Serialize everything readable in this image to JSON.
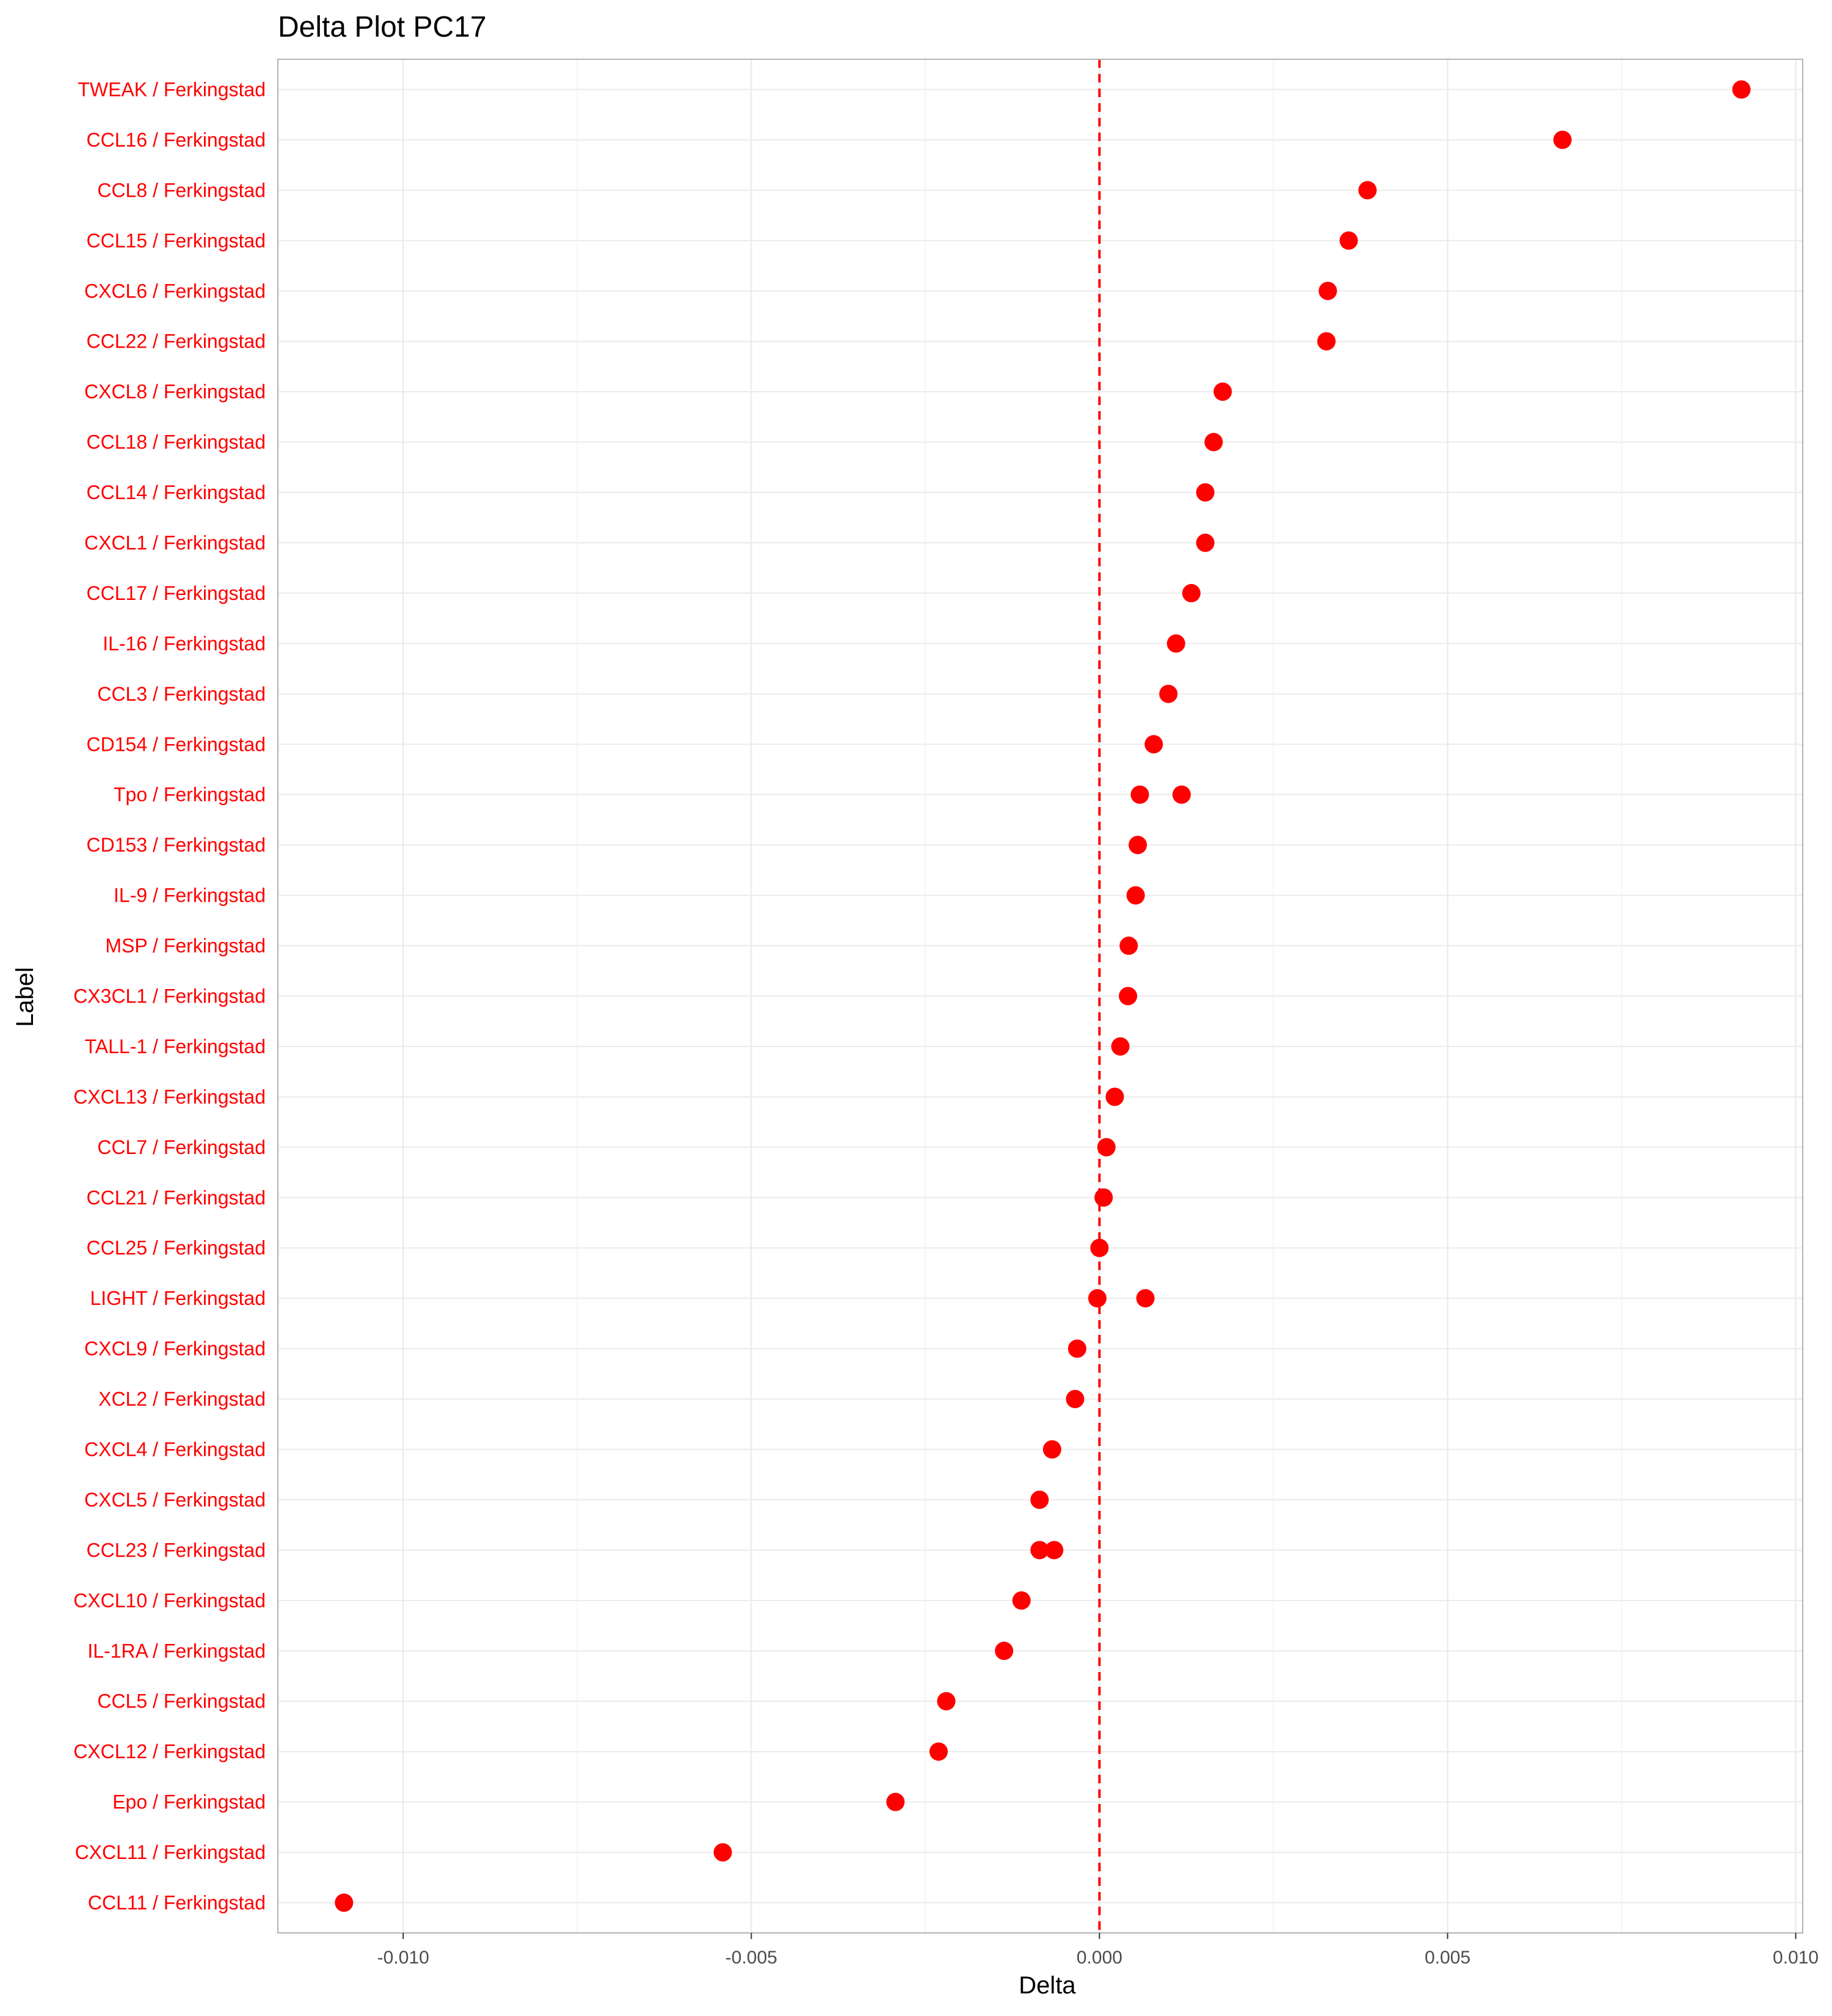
{
  "chart_data": {
    "type": "scatter",
    "title": "Delta Plot PC17",
    "xlabel": "Delta",
    "ylabel": "Label",
    "xlim": [
      -0.0118,
      0.0101
    ],
    "x_ticks": [
      -0.01,
      -0.005,
      0.0,
      0.005,
      0.01
    ],
    "x_tick_labels": [
      "-0.010",
      "-0.005",
      "0.000",
      "0.005",
      "0.010"
    ],
    "reference_line": {
      "x": 0.0,
      "style": "dashed"
    },
    "grid": true,
    "legend": "none",
    "colors": {
      "points": "#ff0000",
      "labels": "#ff0000",
      "refline": "#ff0000",
      "grid": "#ebebeb",
      "panel_border": "#b3b3b3"
    },
    "categories": [
      "TWEAK / Ferkingstad",
      "CCL16 / Ferkingstad",
      "CCL8 / Ferkingstad",
      "CCL15 / Ferkingstad",
      "CXCL6 / Ferkingstad",
      "CCL22 / Ferkingstad",
      "CXCL8 / Ferkingstad",
      "CCL18 / Ferkingstad",
      "CCL14 / Ferkingstad",
      "CXCL1 / Ferkingstad",
      "CCL17 / Ferkingstad",
      "IL-16 / Ferkingstad",
      "CCL3 / Ferkingstad",
      "CD154 / Ferkingstad",
      "Tpo / Ferkingstad",
      "CD153 / Ferkingstad",
      "IL-9 / Ferkingstad",
      "MSP / Ferkingstad",
      "CX3CL1 / Ferkingstad",
      "TALL-1 / Ferkingstad",
      "CXCL13 / Ferkingstad",
      "CCL7 / Ferkingstad",
      "CCL21 / Ferkingstad",
      "CCL25 / Ferkingstad",
      "LIGHT / Ferkingstad",
      "CXCL9 / Ferkingstad",
      "XCL2 / Ferkingstad",
      "CXCL4 / Ferkingstad",
      "CXCL5 / Ferkingstad",
      "CCL23 / Ferkingstad",
      "CXCL10 / Ferkingstad",
      "IL-1RA / Ferkingstad",
      "CCL5 / Ferkingstad",
      "CXCL12 / Ferkingstad",
      "Epo / Ferkingstad",
      "CXCL11 / Ferkingstad",
      "CCL11 / Ferkingstad"
    ],
    "points": [
      {
        "label": "TWEAK / Ferkingstad",
        "x": 0.00922
      },
      {
        "label": "CCL16 / Ferkingstad",
        "x": 0.00665
      },
      {
        "label": "CCL8 / Ferkingstad",
        "x": 0.00385
      },
      {
        "label": "CCL15 / Ferkingstad",
        "x": 0.00358
      },
      {
        "label": "CXCL6 / Ferkingstad",
        "x": 0.00328
      },
      {
        "label": "CCL22 / Ferkingstad",
        "x": 0.00326
      },
      {
        "label": "CXCL8 / Ferkingstad",
        "x": 0.00177
      },
      {
        "label": "CCL18 / Ferkingstad",
        "x": 0.00164
      },
      {
        "label": "CCL14 / Ferkingstad",
        "x": 0.00152
      },
      {
        "label": "CXCL1 / Ferkingstad",
        "x": 0.00152
      },
      {
        "label": "CCL17 / Ferkingstad",
        "x": 0.00132
      },
      {
        "label": "IL-16 / Ferkingstad",
        "x": 0.0011
      },
      {
        "label": "CCL3 / Ferkingstad",
        "x": 0.00099
      },
      {
        "label": "CD154 / Ferkingstad",
        "x": 0.00078
      },
      {
        "label": "Tpo / Ferkingstad",
        "x": 0.00058
      },
      {
        "label": "Tpo / Ferkingstad",
        "x": 0.00118
      },
      {
        "label": "CD153 / Ferkingstad",
        "x": 0.00055
      },
      {
        "label": "IL-9 / Ferkingstad",
        "x": 0.00052
      },
      {
        "label": "MSP / Ferkingstad",
        "x": 0.00042
      },
      {
        "label": "CX3CL1 / Ferkingstad",
        "x": 0.00041
      },
      {
        "label": "TALL-1 / Ferkingstad",
        "x": 0.0003
      },
      {
        "label": "CXCL13 / Ferkingstad",
        "x": 0.00022
      },
      {
        "label": "CCL7 / Ferkingstad",
        "x": 0.0001
      },
      {
        "label": "CCL21 / Ferkingstad",
        "x": 6e-05
      },
      {
        "label": "CCL25 / Ferkingstad",
        "x": 0.0
      },
      {
        "label": "LIGHT / Ferkingstad",
        "x": -3e-05
      },
      {
        "label": "LIGHT / Ferkingstad",
        "x": 0.00066
      },
      {
        "label": "CXCL9 / Ferkingstad",
        "x": -0.00032
      },
      {
        "label": "XCL2 / Ferkingstad",
        "x": -0.00035
      },
      {
        "label": "CXCL4 / Ferkingstad",
        "x": -0.00068
      },
      {
        "label": "CXCL5 / Ferkingstad",
        "x": -0.00086
      },
      {
        "label": "CCL23 / Ferkingstad",
        "x": -0.00086
      },
      {
        "label": "CCL23 / Ferkingstad",
        "x": -0.00065
      },
      {
        "label": "CXCL10 / Ferkingstad",
        "x": -0.00112
      },
      {
        "label": "IL-1RA / Ferkingstad",
        "x": -0.00137
      },
      {
        "label": "CCL5 / Ferkingstad",
        "x": -0.0022
      },
      {
        "label": "CXCL12 / Ferkingstad",
        "x": -0.00231
      },
      {
        "label": "Epo / Ferkingstad",
        "x": -0.00293
      },
      {
        "label": "CXCL11 / Ferkingstad",
        "x": -0.00541
      },
      {
        "label": "CCL11 / Ferkingstad",
        "x": -0.01085
      }
    ]
  }
}
